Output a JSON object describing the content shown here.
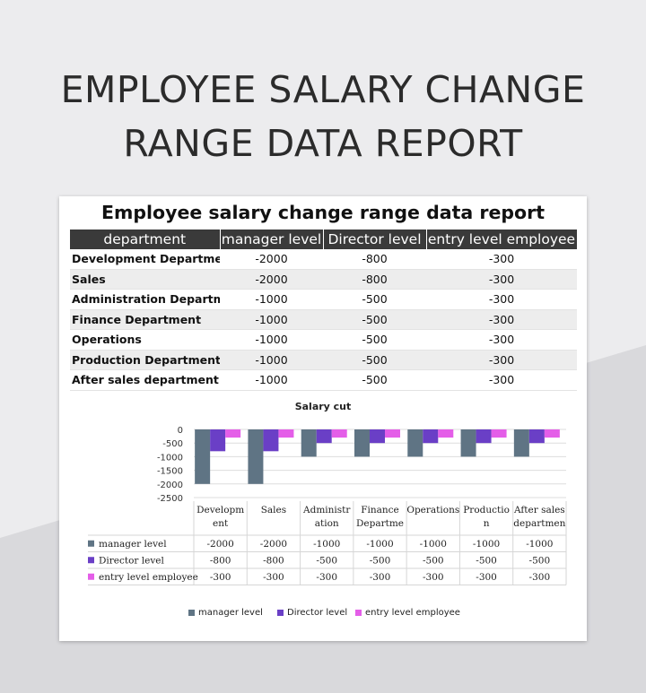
{
  "page_title_line1": "EMPLOYEE SALARY CHANGE",
  "page_title_line2": "RANGE DATA REPORT",
  "sheet_title": "Employee salary change range data report",
  "table": {
    "headers": [
      "department",
      "manager level",
      "Director level",
      "entry level employee"
    ],
    "rows": [
      {
        "department": "Development Department",
        "manager": "-2000",
        "director": "-800",
        "entry": "-300"
      },
      {
        "department": "Sales",
        "manager": "-2000",
        "director": "-800",
        "entry": "-300"
      },
      {
        "department": "Administration Departmen",
        "manager": "-1000",
        "director": "-500",
        "entry": "-300"
      },
      {
        "department": "Finance Department",
        "manager": "-1000",
        "director": "-500",
        "entry": "-300"
      },
      {
        "department": "Operations",
        "manager": "-1000",
        "director": "-500",
        "entry": "-300"
      },
      {
        "department": "Production Department",
        "manager": "-1000",
        "director": "-500",
        "entry": "-300"
      },
      {
        "department": "After sales department",
        "manager": "-1000",
        "director": "-500",
        "entry": "-300"
      }
    ]
  },
  "colors": {
    "manager": "#5f7484",
    "director": "#6a3fc6",
    "entry": "#e45ee8",
    "header_bg": "#3a3a3a"
  },
  "chart_data": {
    "type": "bar",
    "title": "Salary cut",
    "ylim": [
      -2500,
      0
    ],
    "yticks": [
      0,
      -500,
      -1000,
      -1500,
      -2000,
      -2500
    ],
    "grid": true,
    "legend": "bottom",
    "categories": [
      [
        "Developm",
        "ent"
      ],
      [
        "Sales"
      ],
      [
        "Administr",
        "ation"
      ],
      [
        "Finance",
        "Departme"
      ],
      [
        "Operations"
      ],
      [
        "Productio",
        "n"
      ],
      [
        "After sales",
        "departmen"
      ]
    ],
    "series": [
      {
        "name": "manager level",
        "color": "#5f7484",
        "values": [
          -2000,
          -2000,
          -1000,
          -1000,
          -1000,
          -1000,
          -1000
        ]
      },
      {
        "name": "Director level",
        "color": "#6a3fc6",
        "values": [
          -800,
          -800,
          -500,
          -500,
          -500,
          -500,
          -500
        ]
      },
      {
        "name": "entry level employee",
        "color": "#e45ee8",
        "values": [
          -300,
          -300,
          -300,
          -300,
          -300,
          -300,
          -300
        ]
      }
    ]
  }
}
